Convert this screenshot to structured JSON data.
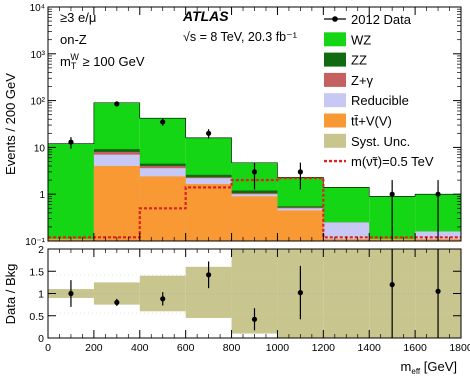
{
  "chart_data": [
    {
      "type": "bar",
      "panel": "main",
      "ylabel": "Events / 200 GeV",
      "yscale": "log",
      "ylim": [
        0.1,
        10000
      ],
      "xlim": [
        0,
        1800
      ],
      "x_ticks": [
        "0",
        "200",
        "400",
        "600",
        "800",
        "1000",
        "1200",
        "1400",
        "1600",
        "1800"
      ],
      "y_ticks": [
        "10⁻¹",
        "1",
        "10",
        "10²",
        "10³",
        "10⁴"
      ],
      "bin_edges": [
        0,
        200,
        400,
        600,
        800,
        1000,
        1200,
        1400,
        1600,
        1800
      ],
      "stack_top": {
        "ttV": [
          0.11,
          4.0,
          2.4,
          1.65,
          0.9,
          0.45,
          0.11,
          0.11,
          0.11
        ],
        "Reducible": [
          0.11,
          7.0,
          3.6,
          2.2,
          1.0,
          0.5,
          0.25,
          0.11,
          0.16
        ],
        "Zgamma": [
          0.11,
          8.0,
          4.0,
          2.3,
          1.05,
          0.52,
          0.25,
          0.11,
          0.16
        ],
        "ZZ": [
          0.11,
          9.2,
          4.5,
          2.6,
          1.2,
          0.55,
          0.25,
          0.11,
          0.16
        ],
        "WZ": [
          12,
          90,
          42,
          16,
          4.7,
          2.3,
          1.4,
          0.9,
          1.0
        ]
      },
      "signal": [
        0.12,
        0.12,
        0.5,
        1.4,
        2.0,
        2.2,
        0.12,
        0.12,
        0.12
      ],
      "data": {
        "x": [
          100,
          300,
          500,
          700,
          900,
          1100,
          1500,
          1700
        ],
        "y": [
          13,
          85,
          35,
          20,
          3,
          3,
          1,
          1
        ]
      },
      "header": {
        "selection": "≥3 e/μ",
        "region": "on-Z",
        "mt_cut": "m_T^W ≥ 100 GeV",
        "experiment": "ATLAS",
        "energy": "√s = 8 TeV, 20.3 fb⁻¹"
      },
      "legend_position": "top-right",
      "legend": [
        {
          "label": "2012 Data",
          "kind": "marker",
          "color": "#000000"
        },
        {
          "label": "WZ",
          "kind": "box",
          "color": "#15d615"
        },
        {
          "label": "ZZ",
          "kind": "box",
          "color": "#106b10"
        },
        {
          "label": "Z+γ",
          "kind": "box",
          "color": "#c46060"
        },
        {
          "label": "Reducible",
          "kind": "box",
          "color": "#c8c8f5"
        },
        {
          "label": "tt̄+V(V)",
          "kind": "box",
          "color": "#f99933"
        },
        {
          "label": "Syst. Unc.",
          "kind": "box",
          "color": "#c8c68e"
        },
        {
          "label": "m(ν̃τ)=0.5 TeV",
          "kind": "dashed",
          "color": "#e02020"
        }
      ]
    },
    {
      "type": "scatter",
      "panel": "ratio",
      "ylabel": "Data / Bkg",
      "xlabel": "m_eff [GeV]",
      "ylim": [
        0,
        2
      ],
      "xlim": [
        0,
        1800
      ],
      "y_ticks": [
        "0",
        "0.5",
        "1",
        "1.5",
        "2"
      ],
      "x": [
        100,
        300,
        500,
        700,
        900,
        1100,
        1500,
        1700
      ],
      "y": [
        1.0,
        0.8,
        0.88,
        1.42,
        0.42,
        1.02,
        1.2,
        1.05
      ],
      "yerr": [
        0.3,
        0.08,
        0.15,
        0.3,
        0.25,
        0.6,
        1.2,
        1.2
      ],
      "band": [
        {
          "lo": 0.9,
          "hi": 1.1
        },
        {
          "lo": 0.75,
          "hi": 1.25
        },
        {
          "lo": 0.6,
          "hi": 1.4
        },
        {
          "lo": 0.45,
          "hi": 1.6
        },
        {
          "lo": 0.1,
          "hi": 2.0
        },
        {
          "lo": 0.0,
          "hi": 2.0
        },
        {
          "lo": 0.0,
          "hi": 2.0
        },
        {
          "lo": 0.0,
          "hi": 2.0
        },
        {
          "lo": 0.0,
          "hi": 2.0
        }
      ]
    }
  ]
}
